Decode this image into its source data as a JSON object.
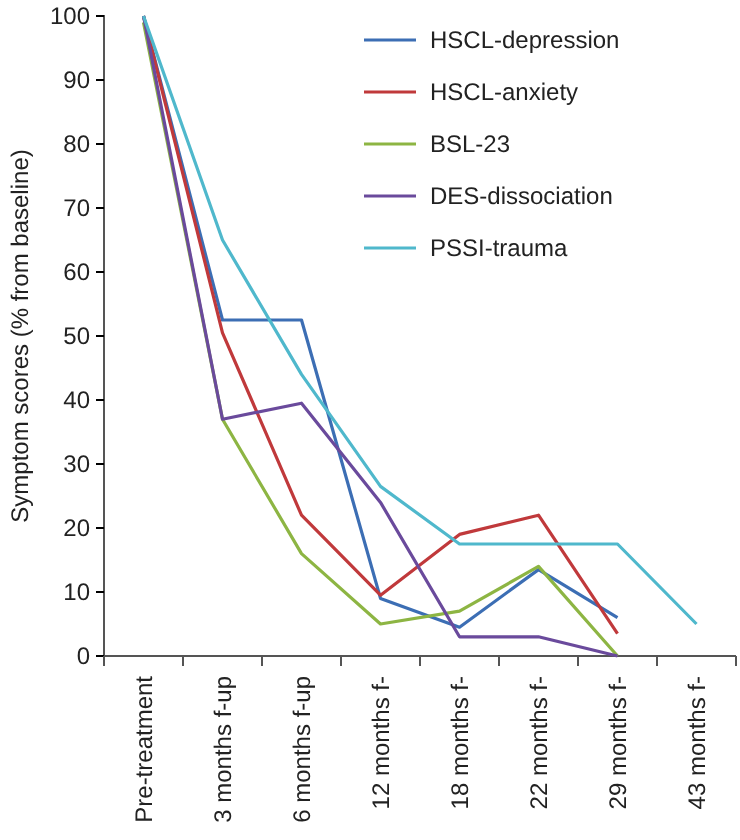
{
  "chart_data": {
    "type": "line",
    "ylabel": "Symptom scores (% from baseline)",
    "categories": [
      "Pre-treatment",
      "3 months f-up",
      "6 months f-up",
      "12 months f-",
      "18 months f-",
      "22 months f-",
      "29 months f-",
      "43 months f-"
    ],
    "ylim": [
      0,
      100
    ],
    "yticks": [
      0,
      10,
      20,
      30,
      40,
      50,
      60,
      70,
      80,
      90,
      100
    ],
    "grid": false,
    "legend": "top right",
    "marker": "none",
    "line_style": "solid",
    "series": [
      {
        "name": "HSCL-depression",
        "color": "#3c6eb4",
        "values": [
          100,
          52.5,
          52.5,
          9,
          4.5,
          13.5,
          6,
          null
        ]
      },
      {
        "name": "HSCL-anxiety",
        "color": "#c0393b",
        "values": [
          100,
          50.5,
          22,
          9.5,
          19,
          22,
          3.5,
          null
        ]
      },
      {
        "name": "BSL-23",
        "color": "#8db543",
        "values": [
          99,
          37,
          16,
          5,
          7,
          14,
          0,
          null
        ]
      },
      {
        "name": "DES-dissociation",
        "color": "#6a4a9c",
        "values": [
          100,
          37,
          39.5,
          24,
          3,
          3,
          0,
          null
        ]
      },
      {
        "name": "PSSI-trauma",
        "color": "#4fb8cc",
        "values": [
          100,
          65,
          44,
          26.5,
          17.5,
          17.5,
          17.5,
          5
        ]
      }
    ]
  }
}
